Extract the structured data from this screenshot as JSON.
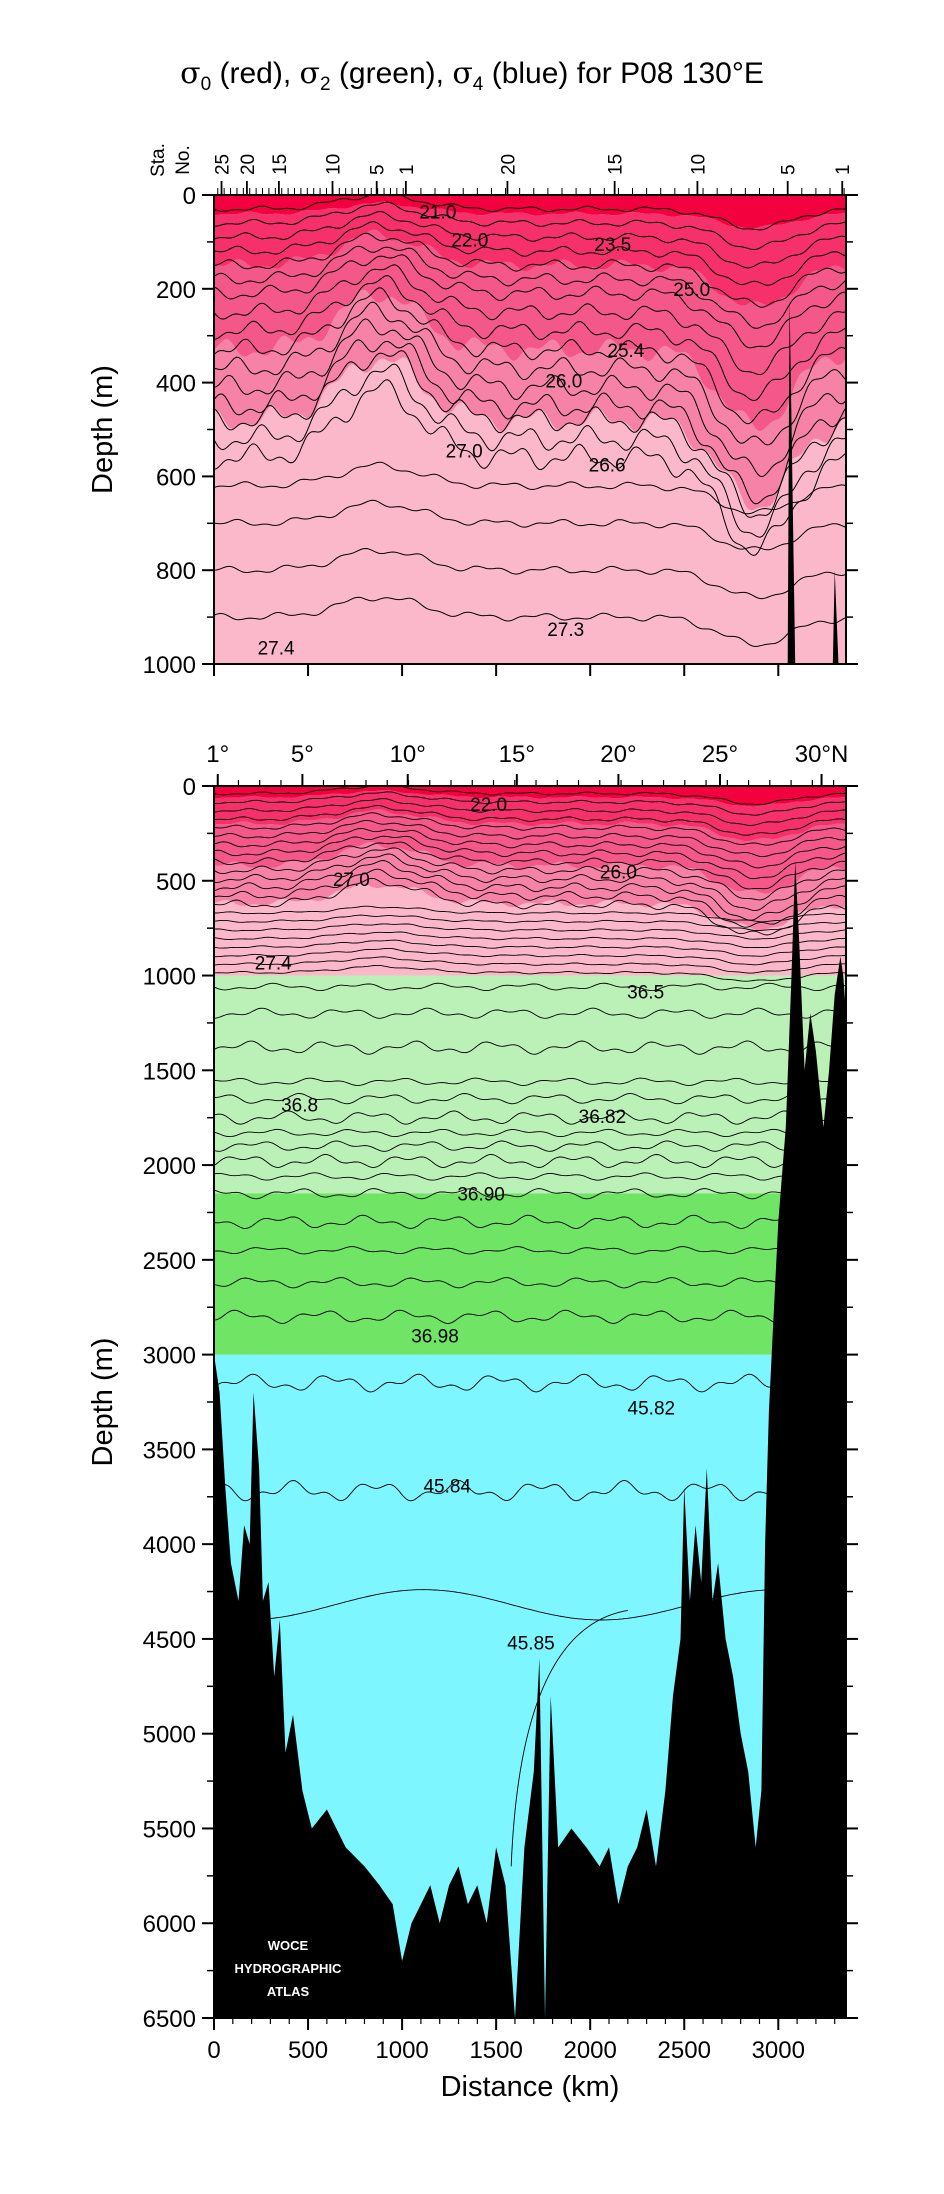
{
  "title_parts": {
    "s0": "σ",
    "s0_sub": "0",
    "t0": " (red), ",
    "s2": "σ",
    "s2_sub": "2",
    "t2": " (green), ",
    "s4": "σ",
    "s4_sub": "4",
    "t4": " (blue) for P08 130°E"
  },
  "colors": {
    "red_bands": [
      "#f3003e",
      "#f5306a",
      "#f4578a",
      "#f683a7",
      "#fbb8ca"
    ],
    "green_bands": [
      "#bbf0b6",
      "#70e464"
    ],
    "blue": "#7ef6ff",
    "bathymetry": "#000000",
    "contour": "#000000"
  },
  "chart_data": [
    {
      "type": "contour-section",
      "panel": "top",
      "xlim": [
        0,
        3360
      ],
      "ylim": [
        1000,
        0
      ],
      "ylabel": "Depth (m)",
      "yticks": [
        0,
        200,
        400,
        600,
        800,
        1000
      ],
      "station_axis_label": [
        "Sta.",
        "No."
      ],
      "station_ticks": [
        {
          "label": "25",
          "x": 40
        },
        {
          "label": "20",
          "x": 175
        },
        {
          "label": "15",
          "x": 345
        },
        {
          "label": "10",
          "x": 630
        },
        {
          "label": "5",
          "x": 865
        },
        {
          "label": "1",
          "x": 1020
        },
        {
          "label": "20",
          "x": 1560
        },
        {
          "label": "15",
          "x": 2130
        },
        {
          "label": "10",
          "x": 2570
        },
        {
          "label": "5",
          "x": 3050
        },
        {
          "label": "1",
          "x": 3340
        }
      ],
      "contour_labels": [
        {
          "text": "21.0",
          "x": 1190,
          "y": 35
        },
        {
          "text": "22.0",
          "x": 1360,
          "y": 95
        },
        {
          "text": "23.5",
          "x": 2120,
          "y": 105
        },
        {
          "text": "25.0",
          "x": 2540,
          "y": 200
        },
        {
          "text": "25.4",
          "x": 2190,
          "y": 330
        },
        {
          "text": "26.0",
          "x": 1860,
          "y": 395
        },
        {
          "text": "27.0",
          "x": 1330,
          "y": 545
        },
        {
          "text": "26.6",
          "x": 2090,
          "y": 575
        },
        {
          "text": "27.3",
          "x": 1870,
          "y": 925
        },
        {
          "text": "27.4",
          "x": 330,
          "y": 965
        }
      ]
    },
    {
      "type": "contour-section",
      "panel": "bottom",
      "xlim": [
        0,
        3360
      ],
      "ylim": [
        6500,
        0
      ],
      "xlabel": "Distance (km)",
      "ylabel": "Depth (m)",
      "xticks": [
        0,
        500,
        1000,
        1500,
        2000,
        2500,
        3000
      ],
      "yticks": [
        0,
        500,
        1000,
        1500,
        2000,
        2500,
        3000,
        3500,
        4000,
        4500,
        5000,
        5500,
        6000,
        6500
      ],
      "latitude_ticks": [
        {
          "label": "1°",
          "x": 20
        },
        {
          "label": "5°",
          "x": 470
        },
        {
          "label": "10°",
          "x": 1030
        },
        {
          "label": "15°",
          "x": 1610
        },
        {
          "label": "20°",
          "x": 2150
        },
        {
          "label": "25°",
          "x": 2690
        },
        {
          "label": "30°N",
          "x": 3230
        }
      ],
      "contour_labels": [
        {
          "text": "22.0",
          "x": 1460,
          "y": 95
        },
        {
          "text": "27.0",
          "x": 730,
          "y": 490
        },
        {
          "text": "26.0",
          "x": 2150,
          "y": 450
        },
        {
          "text": "27.4",
          "x": 315,
          "y": 930
        },
        {
          "text": "36.5",
          "x": 2295,
          "y": 1085
        },
        {
          "text": "36.8",
          "x": 455,
          "y": 1680
        },
        {
          "text": "36.82",
          "x": 2065,
          "y": 1740
        },
        {
          "text": "36.90",
          "x": 1420,
          "y": 2150
        },
        {
          "text": "36.98",
          "x": 1175,
          "y": 2900
        },
        {
          "text": "45.82",
          "x": 2325,
          "y": 3280
        },
        {
          "text": "45.84",
          "x": 1240,
          "y": 3690
        },
        {
          "text": "45.85",
          "x": 1685,
          "y": 4520
        }
      ],
      "sigma2_range": [
        1000,
        3000
      ],
      "sigma4_range": [
        3000,
        6500
      ],
      "bathymetry": [
        [
          0,
          3000
        ],
        [
          30,
          3200
        ],
        [
          60,
          3700
        ],
        [
          90,
          4100
        ],
        [
          130,
          4300
        ],
        [
          160,
          3900
        ],
        [
          190,
          4000
        ],
        [
          210,
          3200
        ],
        [
          240,
          3600
        ],
        [
          260,
          4300
        ],
        [
          290,
          4200
        ],
        [
          320,
          4700
        ],
        [
          350,
          4400
        ],
        [
          380,
          5100
        ],
        [
          420,
          4900
        ],
        [
          470,
          5300
        ],
        [
          520,
          5500
        ],
        [
          600,
          5400
        ],
        [
          700,
          5600
        ],
        [
          800,
          5700
        ],
        [
          880,
          5800
        ],
        [
          950,
          5900
        ],
        [
          1000,
          6200
        ],
        [
          1050,
          6000
        ],
        [
          1100,
          5900
        ],
        [
          1150,
          5800
        ],
        [
          1200,
          6000
        ],
        [
          1250,
          5800
        ],
        [
          1300,
          5700
        ],
        [
          1350,
          5900
        ],
        [
          1400,
          5800
        ],
        [
          1450,
          6000
        ],
        [
          1500,
          5600
        ],
        [
          1550,
          5800
        ],
        [
          1600,
          6500
        ],
        [
          1650,
          5600
        ],
        [
          1700,
          5200
        ],
        [
          1730,
          4600
        ],
        [
          1760,
          6500
        ],
        [
          1790,
          4800
        ],
        [
          1830,
          5600
        ],
        [
          1900,
          5500
        ],
        [
          1980,
          5600
        ],
        [
          2050,
          5700
        ],
        [
          2100,
          5600
        ],
        [
          2150,
          5900
        ],
        [
          2200,
          5700
        ],
        [
          2250,
          5600
        ],
        [
          2300,
          5400
        ],
        [
          2350,
          5700
        ],
        [
          2400,
          5300
        ],
        [
          2440,
          4800
        ],
        [
          2480,
          4500
        ],
        [
          2500,
          3700
        ],
        [
          2530,
          4300
        ],
        [
          2560,
          3900
        ],
        [
          2590,
          4200
        ],
        [
          2620,
          3600
        ],
        [
          2650,
          4300
        ],
        [
          2680,
          4100
        ],
        [
          2720,
          4500
        ],
        [
          2760,
          4700
        ],
        [
          2800,
          5000
        ],
        [
          2840,
          5200
        ],
        [
          2880,
          5600
        ],
        [
          2910,
          5300
        ],
        [
          2930,
          4000
        ],
        [
          2950,
          3300
        ],
        [
          2970,
          2900
        ],
        [
          3000,
          2300
        ],
        [
          3040,
          1800
        ],
        [
          3070,
          1000
        ],
        [
          3090,
          400
        ],
        [
          3110,
          800
        ],
        [
          3140,
          1500
        ],
        [
          3170,
          1200
        ],
        [
          3200,
          1400
        ],
        [
          3240,
          1800
        ],
        [
          3270,
          1500
        ],
        [
          3300,
          1100
        ],
        [
          3330,
          900
        ],
        [
          3345,
          1000
        ],
        [
          3360,
          1200
        ]
      ]
    }
  ],
  "logo_lines": [
    "WOCE",
    "HYDROGRAPHIC",
    "ATLAS"
  ]
}
